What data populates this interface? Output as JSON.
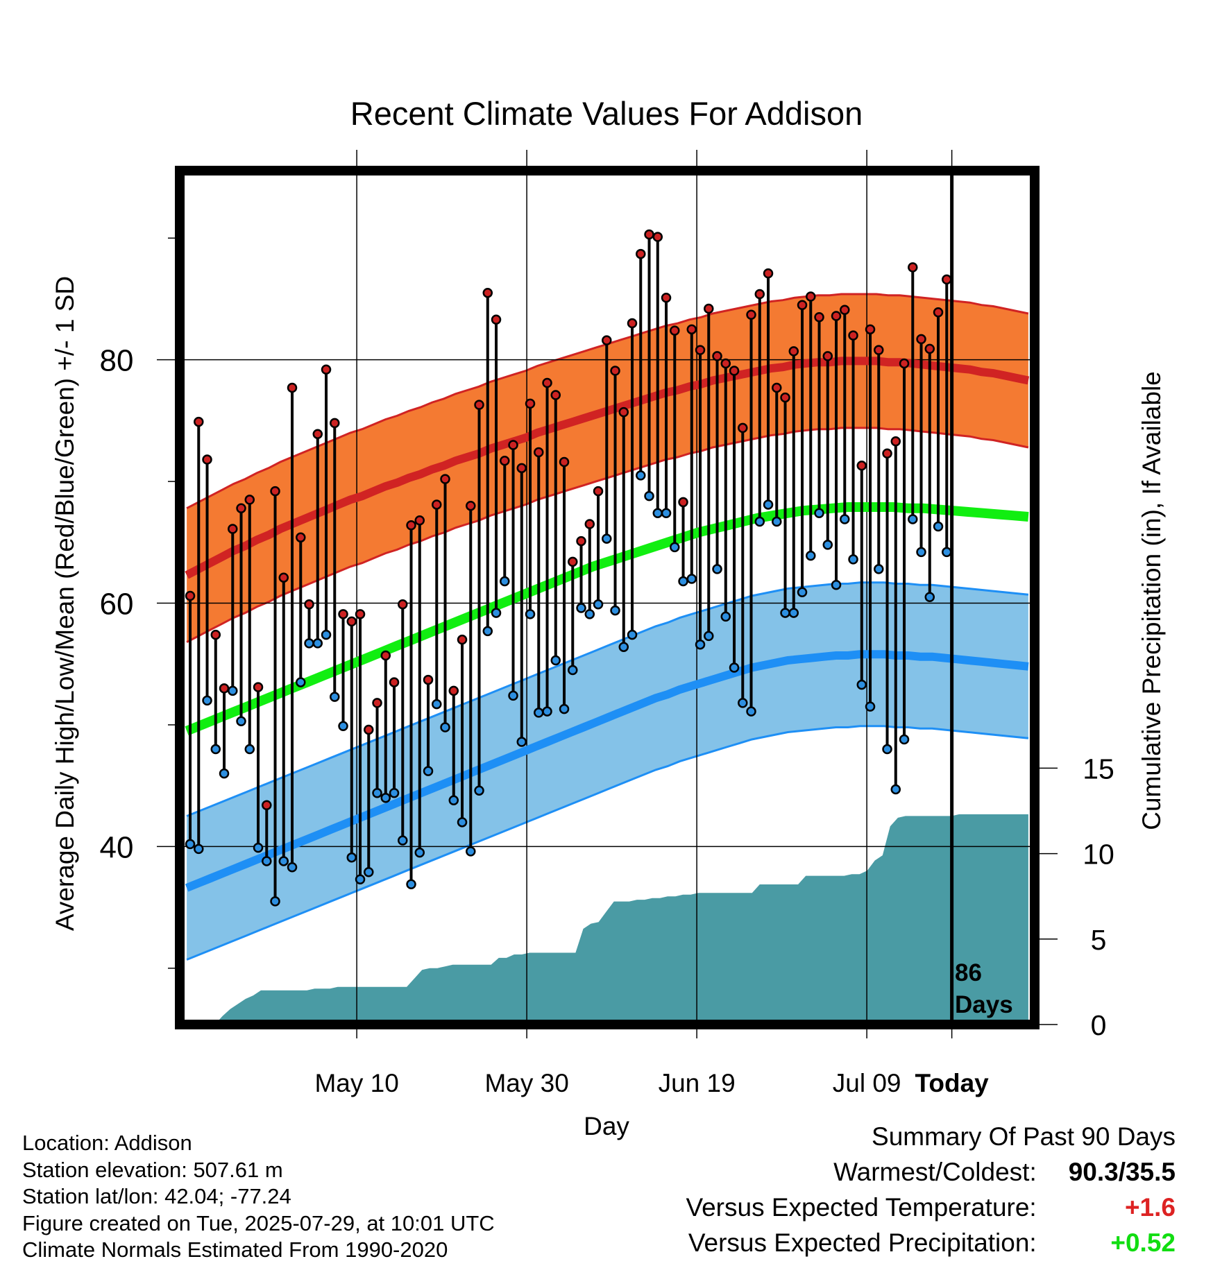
{
  "chart_data": {
    "type": "line",
    "title": "Recent Climate Values For Addison",
    "xlabel": "Day",
    "ylabel_left": "Average Daily High/Low/Mean (Red/Blue/Green) +/- 1 SD",
    "ylabel_right": "Cumulative Precipitation (in), If Available",
    "x_ticks": [
      "May 10",
      "May 30",
      "Jun 19",
      "Jul 09",
      "Today"
    ],
    "y_left_ticks": [
      "40",
      "60",
      "80"
    ],
    "y_right_ticks": [
      "0",
      "5",
      "10",
      "15"
    ],
    "y_left_range": [
      26.0,
      96.0
    ],
    "y_right_range": [
      0,
      50
    ],
    "x_range_days": [
      -90.5,
      9.5
    ],
    "days_label": "86\nDays",
    "grid": true,
    "daily_high": [
      60.6,
      74.9,
      71.8,
      57.4,
      53.0,
      66.1,
      67.8,
      68.5,
      53.1,
      43.4,
      69.2,
      62.1,
      77.7,
      65.4,
      59.9,
      73.9,
      79.2,
      74.8,
      59.1,
      58.5,
      59.1,
      49.6,
      51.8,
      55.7,
      53.5,
      59.9,
      66.4,
      66.8,
      53.7,
      68.1,
      70.2,
      52.8,
      57.0,
      68.0,
      76.3,
      85.5,
      83.3,
      71.7,
      73.0,
      71.1,
      76.4,
      72.4,
      78.1,
      77.1,
      71.6,
      63.4,
      65.1,
      66.5,
      69.2,
      81.6,
      79.1,
      75.7,
      83.0,
      88.7,
      90.3,
      90.1,
      85.1,
      82.4,
      68.3,
      82.5,
      80.8,
      84.2,
      80.3,
      79.7,
      79.1,
      74.4,
      83.7,
      85.4,
      87.1,
      77.7,
      76.9,
      80.7,
      84.5,
      85.2,
      83.5,
      80.3,
      83.6,
      84.1,
      82.0,
      71.3,
      82.5,
      80.8,
      72.3,
      73.3,
      79.7,
      87.6,
      81.7,
      80.9,
      83.9,
      86.6
    ],
    "daily_low": [
      40.2,
      39.8,
      52.0,
      48.0,
      46.0,
      52.8,
      50.3,
      48.0,
      39.9,
      38.8,
      35.5,
      38.8,
      38.3,
      53.5,
      56.7,
      56.7,
      57.4,
      52.3,
      49.9,
      39.1,
      37.3,
      37.9,
      44.4,
      44.0,
      44.4,
      40.5,
      36.9,
      39.5,
      46.2,
      51.7,
      49.8,
      43.8,
      42.0,
      39.6,
      44.6,
      57.7,
      59.2,
      61.8,
      52.4,
      48.6,
      59.1,
      51.0,
      51.1,
      55.3,
      51.3,
      54.5,
      59.6,
      59.1,
      59.9,
      65.3,
      59.4,
      56.4,
      57.4,
      70.5,
      68.8,
      67.4,
      67.4,
      64.6,
      61.8,
      62.0,
      56.6,
      57.3,
      62.8,
      58.9,
      54.7,
      51.8,
      51.1,
      66.7,
      68.1,
      66.7,
      59.2,
      59.2,
      60.9,
      63.9,
      67.4,
      64.8,
      61.5,
      66.9,
      63.6,
      53.3,
      51.5,
      62.8,
      48.0,
      44.7,
      48.8,
      66.9,
      64.2,
      60.5,
      66.3,
      64.2
    ],
    "normal_high": [
      62.3,
      62.8,
      63.3,
      63.8,
      64.3,
      64.7,
      65.2,
      65.6,
      66.1,
      66.5,
      66.9,
      67.3,
      67.7,
      68.1,
      68.5,
      68.8,
      69.2,
      69.6,
      69.9,
      70.3,
      70.6,
      71.0,
      71.3,
      71.7,
      72.0,
      72.3,
      72.7,
      73.0,
      73.3,
      73.6,
      74.0,
      74.3,
      74.6,
      74.9,
      75.2,
      75.5,
      75.8,
      76.1,
      76.4,
      76.7,
      77.0,
      77.3,
      77.5,
      77.8,
      78.0,
      78.3,
      78.5,
      78.7,
      78.9,
      79.1,
      79.3,
      79.4,
      79.6,
      79.7,
      79.8,
      79.8,
      79.9,
      79.9,
      79.9,
      79.9,
      79.8,
      79.8,
      79.7,
      79.6,
      79.5,
      79.4,
      79.3,
      79.2,
      79.0,
      78.9,
      78.7,
      78.5,
      78.3
    ],
    "normal_high_sd": 5.5,
    "normal_low": [
      36.6,
      37.0,
      37.4,
      37.8,
      38.2,
      38.6,
      39.0,
      39.4,
      39.8,
      40.2,
      40.6,
      41.0,
      41.4,
      41.8,
      42.2,
      42.6,
      43.0,
      43.4,
      43.8,
      44.2,
      44.6,
      45.0,
      45.4,
      45.8,
      46.2,
      46.6,
      47.0,
      47.4,
      47.8,
      48.2,
      48.6,
      49.0,
      49.4,
      49.8,
      50.2,
      50.6,
      51.0,
      51.4,
      51.8,
      52.2,
      52.5,
      52.9,
      53.2,
      53.5,
      53.8,
      54.1,
      54.4,
      54.7,
      54.9,
      55.1,
      55.3,
      55.4,
      55.5,
      55.6,
      55.7,
      55.7,
      55.8,
      55.8,
      55.8,
      55.7,
      55.7,
      55.6,
      55.6,
      55.5,
      55.4,
      55.3,
      55.2,
      55.1,
      55.0,
      54.9,
      54.8
    ],
    "normal_low_sd": 5.9,
    "normal_mean": [
      49.5,
      50.0,
      50.5,
      51.0,
      51.5,
      52.0,
      52.5,
      53.0,
      53.5,
      54.0,
      54.5,
      55.0,
      55.5,
      56.0,
      56.5,
      57.0,
      57.5,
      58.0,
      58.5,
      59.0,
      59.5,
      60.0,
      60.5,
      61.0,
      61.5,
      62.0,
      62.5,
      63.0,
      63.4,
      63.8,
      64.2,
      64.6,
      65.0,
      65.4,
      65.8,
      66.1,
      66.4,
      66.7,
      67.0,
      67.2,
      67.4,
      67.6,
      67.7,
      67.8,
      67.9,
      67.9,
      67.9,
      67.9,
      67.8,
      67.8,
      67.7,
      67.6,
      67.5,
      67.4,
      67.3,
      67.2,
      67.1
    ],
    "cumulative_precip": [
      0.0,
      0.0,
      0.0,
      0.5,
      0.9,
      1.2,
      1.5,
      1.7,
      2.0,
      2.0,
      2.0,
      2.0,
      2.0,
      2.0,
      2.0,
      2.1,
      2.1,
      2.1,
      2.2,
      2.2,
      2.2,
      2.2,
      2.2,
      2.2,
      2.2,
      2.2,
      2.2,
      2.2,
      2.7,
      3.2,
      3.3,
      3.3,
      3.4,
      3.5,
      3.5,
      3.5,
      3.5,
      3.5,
      3.5,
      3.9,
      3.9,
      4.1,
      4.1,
      4.2,
      4.2,
      4.2,
      4.2,
      4.2,
      4.2,
      4.2,
      5.6,
      5.9,
      6.0,
      6.6,
      7.2,
      7.2,
      7.2,
      7.3,
      7.3,
      7.4,
      7.4,
      7.5,
      7.5,
      7.6,
      7.6,
      7.7,
      7.7,
      7.7,
      7.7,
      7.7,
      7.7,
      7.7,
      7.7,
      8.2,
      8.2,
      8.2,
      8.2,
      8.2,
      8.2,
      8.7,
      8.7,
      8.7,
      8.7,
      8.7,
      8.7,
      8.8,
      8.8,
      9.0,
      9.6,
      9.9,
      11.6,
      12.1,
      12.2,
      12.2,
      12.2,
      12.2,
      12.2,
      12.2,
      12.2,
      12.3,
      12.3,
      12.3,
      12.3,
      12.3,
      12.3,
      12.3,
      12.3,
      12.3,
      12.3
    ],
    "series": [
      {
        "name": "High",
        "color": "#d42020"
      },
      {
        "name": "Low",
        "color": "#1f8ef0"
      },
      {
        "name": "Mean",
        "color": "#1ee81e"
      }
    ]
  },
  "colors": {
    "high_band": "#f47a32",
    "high_line": "#d02323",
    "low_band": "#84c2e8",
    "low_line": "#1e8ff5",
    "mean_line": "#11ee11",
    "precip": "#4a9ba4",
    "high_dot": "#cc2222",
    "low_dot": "#2d8fe0",
    "positive_temp": "#dd2222",
    "positive_precip": "#11dd11"
  },
  "info": {
    "location": "Location: Addison",
    "elevation": "Station elevation: 507.61 m",
    "latlon": "Station lat/lon: 42.04; -77.24",
    "created": "Figure created on Tue, 2025-07-29, at 10:01 UTC",
    "normals": "Climate Normals Estimated From 1990-2020"
  },
  "summary": {
    "title": "Summary Of Past 90 Days",
    "warmest_coldest_label": "Warmest/Coldest:",
    "warmest_coldest_value": "90.3/35.5",
    "temp_label": "Versus Expected Temperature:",
    "temp_value": "+1.6",
    "precip_label": "Versus Expected Precipitation:",
    "precip_value": "+0.52"
  }
}
